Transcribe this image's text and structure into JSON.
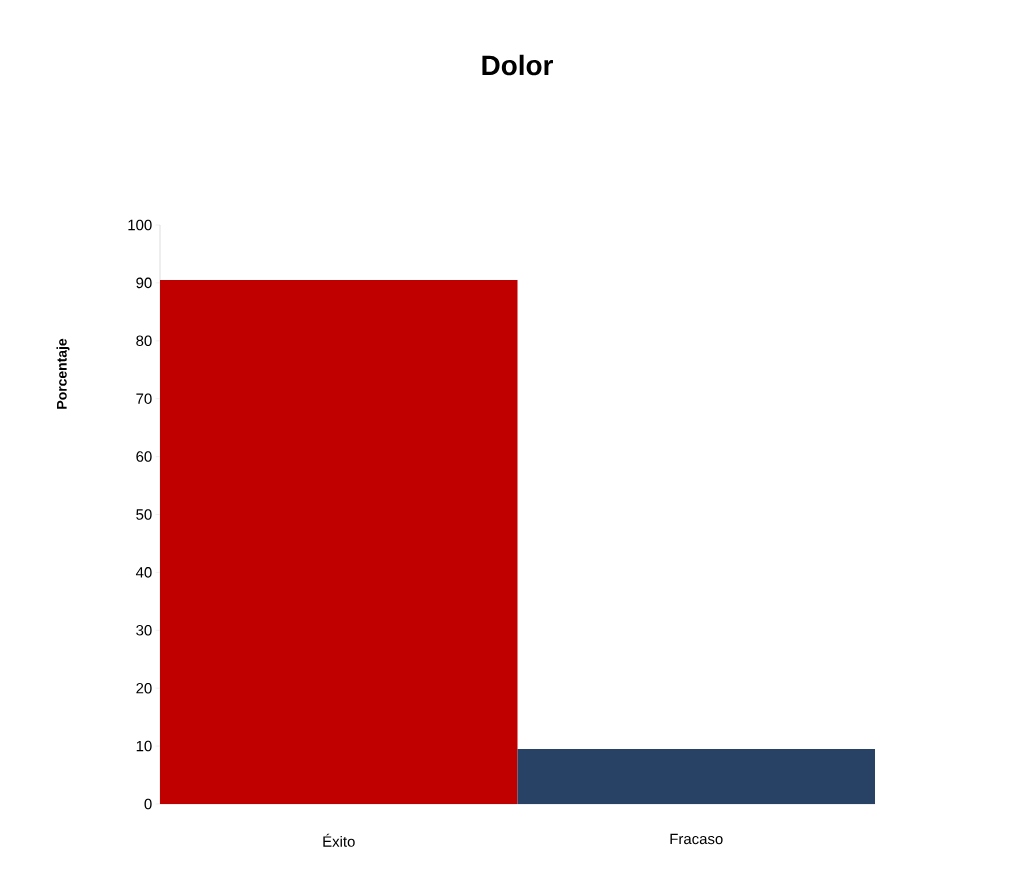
{
  "chart_data": {
    "type": "bar",
    "title": "Dolor",
    "ylabel": "Porcentaje",
    "categories": [
      "Éxito",
      "Fracaso"
    ],
    "values": [
      90.5,
      9.5
    ],
    "colors": [
      "#c00000",
      "#284266"
    ],
    "ylim": [
      0,
      100
    ],
    "yticks": [
      0,
      10,
      20,
      30,
      40,
      50,
      60,
      70,
      80,
      90,
      100
    ]
  }
}
